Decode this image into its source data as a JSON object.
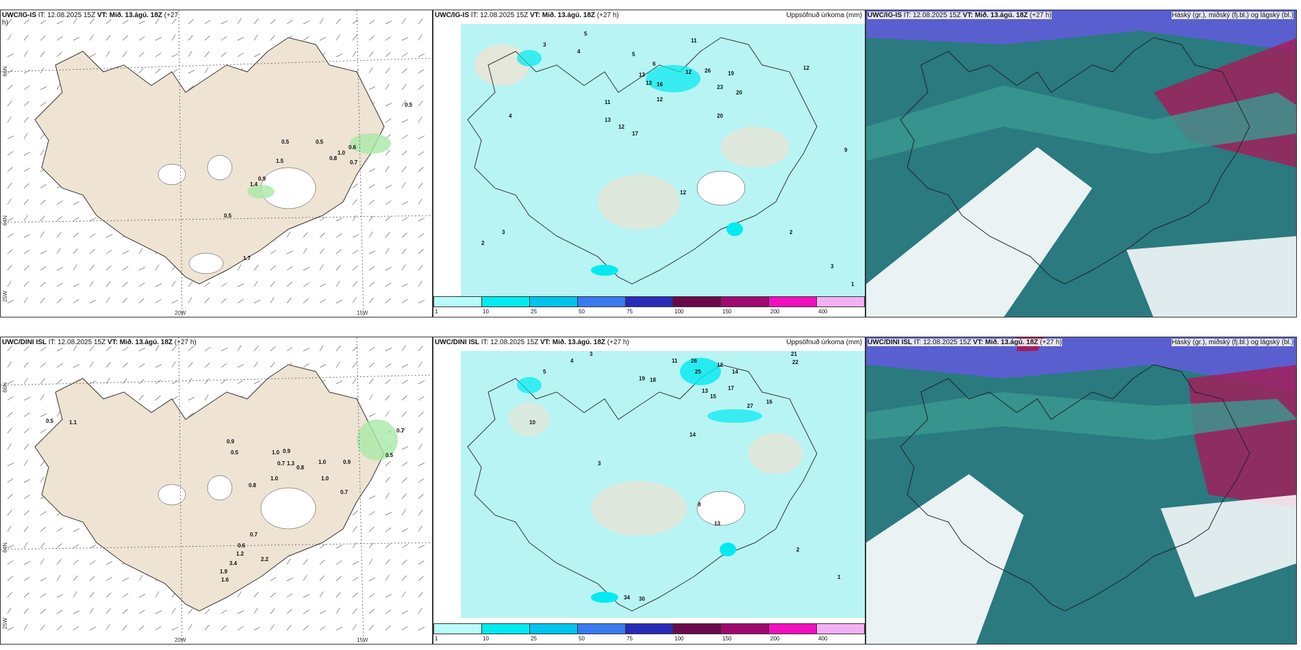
{
  "panels": [
    {
      "id": "p1",
      "model": "UWC/IG-IS",
      "it": "IT: 12.08.2025 15Z",
      "vt": "VT: Mið. 13.ágú. 18Z",
      "lead": "(+27",
      "lead2": "h)",
      "right_title": "",
      "values": [
        "0.5",
        "0.5",
        "0.5",
        "1.0",
        "0.6",
        "0.8",
        "0.7",
        "1.5",
        "1.4",
        "0.9",
        "0.5",
        "1.7"
      ]
    },
    {
      "id": "p2",
      "model": "UWC/IG-IS",
      "it": "IT: 12.08.2025 15Z",
      "vt": "VT: Mið. 13.ágú. 18Z",
      "lead": "(+27 h)",
      "right_title": "Uppsöfnuð úrkoma (mm)",
      "values": [
        "5",
        "3",
        "4",
        "5",
        "6",
        "13",
        "12",
        "11",
        "26",
        "19",
        "23",
        "20",
        "13",
        "16",
        "12",
        "17",
        "20",
        "11",
        "13",
        "12",
        "12",
        "4",
        "3",
        "2",
        "9",
        "3",
        "2",
        "1",
        "12"
      ]
    },
    {
      "id": "p3",
      "model": "UWC/IG-IS",
      "it": "IT: 12.08.2025 15Z",
      "vt": "VT: Mið. 13.ágú. 18Z",
      "lead": "(+27 h)",
      "right_title": "Háský (gr.), miðský (fj.bl.) og lágský (bl.)"
    },
    {
      "id": "p4",
      "model": "UWC/DINI ISL",
      "it": "IT: 12.08.2025 15Z",
      "vt": "VT: Mið. 13.ágú. 18Z",
      "lead": "(+27 h)",
      "right_title": "",
      "values": [
        "0.5",
        "1.1",
        "0.9",
        "0.5",
        "1.0",
        "0.9",
        "0.7",
        "1.3",
        "0.8",
        "1.0",
        "1.0",
        "0.8",
        "1.0",
        "0.7",
        "0.9",
        "0.5",
        "0.7",
        "0.6",
        "1.2",
        "3.4",
        "2.2",
        "1.9",
        "1.6",
        "0.7"
      ]
    },
    {
      "id": "p5",
      "model": "UWC/DINI ISL",
      "it": "IT: 12.08.2025 15Z",
      "vt": "VT: Mið. 13.ágú. 18Z",
      "lead": "(+27 h)",
      "right_title": "Uppsöfnuð úrkoma (mm)",
      "values": [
        "4",
        "5",
        "3",
        "11",
        "26",
        "25",
        "12",
        "14",
        "21",
        "22",
        "19",
        "18",
        "17",
        "15",
        "13",
        "27",
        "16",
        "13",
        "8",
        "10",
        "14",
        "3",
        "2",
        "1",
        "34",
        "30"
      ]
    },
    {
      "id": "p6",
      "model": "UWC/DINI ISL",
      "it": "IT: 12.08.2025 15Z",
      "vt": "VT: Mið. 13.ágú. 18Z",
      "lead": "(+27 h)",
      "right_title": "Háský (gr.), miðský (fj.bl.) og lágský (bl.)"
    }
  ],
  "axes": {
    "lat_top": "66N",
    "lat_bottom": "64N",
    "lon_left": "20W",
    "lon_right": "15W",
    "corner": "25W"
  },
  "colorbar": {
    "labels": [
      "1",
      "10",
      "25",
      "50",
      "75",
      "100",
      "150",
      "200",
      "400"
    ],
    "colors": [
      "#b8fbfb",
      "#00eaf0",
      "#00c4ee",
      "#3a7af0",
      "#2a2ab8",
      "#6a0a4a",
      "#a00a70",
      "#f010c0",
      "#f4b0f4"
    ]
  },
  "colors": {
    "land": "#efe3d3",
    "sea_precip": "#b8f4f4",
    "precip_green": "#a8e8a8",
    "cloud_low": "#5a5fcf",
    "cloud_mid": "#2a7a80",
    "cloud_high": "#a0205a"
  }
}
